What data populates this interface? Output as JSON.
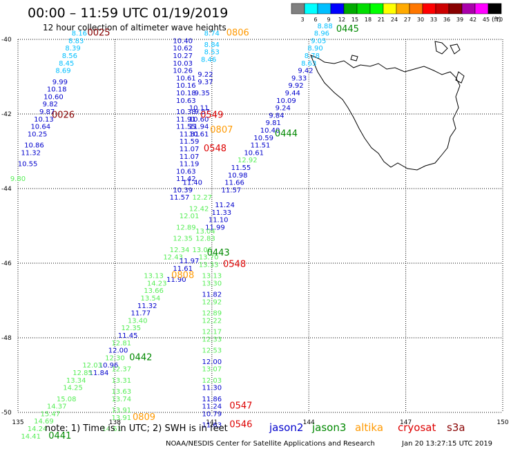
{
  "header": {
    "title": "00:00 – 11:59 UTC 01/19/2019",
    "subtitle": "12 hour collection of altimeter wave heights"
  },
  "colorbar": {
    "unit": "(ft)",
    "ticks": [
      "3",
      "6",
      "9",
      "12",
      "15",
      "18",
      "21",
      "24",
      "27",
      "30",
      "33",
      "36",
      "39",
      "42",
      "45",
      "70"
    ],
    "colors": [
      "#808080",
      "#00ffff",
      "#00bfff",
      "#0000ff",
      "#00aa00",
      "#00dd00",
      "#00ff00",
      "#ffff00",
      "#ffaa00",
      "#ff7700",
      "#ff0000",
      "#cc0000",
      "#880000",
      "#aa00aa",
      "#ff00ff",
      "#000000"
    ]
  },
  "footer": {
    "note": "note: 1) Time is in UTC; 2) SWH is in feet",
    "credit": "NOAA/NESDIS Center for Satellite Applications and Research",
    "timestamp": "Jan 20 13:27:15 UTC 2019"
  },
  "legend": [
    {
      "name": "jason2",
      "color": "#0000cc"
    },
    {
      "name": "jason3",
      "color": "#008800"
    },
    {
      "name": "altika",
      "color": "#ff9900"
    },
    {
      "name": "cryosat",
      "color": "#dd0000"
    },
    {
      "name": "s3a",
      "color": "#880000"
    }
  ],
  "chart_data": {
    "type": "scatter",
    "xlim": [
      135,
      150
    ],
    "ylim": [
      -50,
      -40
    ],
    "xticks": [
      "135",
      "138",
      "141",
      "144",
      "147",
      "150"
    ],
    "yticks": [
      "-40",
      "-42",
      "-44",
      "-46",
      "-48",
      "-50"
    ],
    "grid": true,
    "points": [
      {
        "x": 135.0,
        "y": -43.8,
        "v": "9.80",
        "c": "#55ee55"
      },
      {
        "x": 135.3,
        "y": -43.4,
        "v": "10.55",
        "c": "#0000cc"
      },
      {
        "x": 135.4,
        "y": -43.1,
        "v": "11.32",
        "c": "#0000cc"
      },
      {
        "x": 135.5,
        "y": -42.9,
        "v": "10.86",
        "c": "#0000cc"
      },
      {
        "x": 135.6,
        "y": -42.6,
        "v": "10.25",
        "c": "#0000cc"
      },
      {
        "x": 135.7,
        "y": -42.4,
        "v": "10.64",
        "c": "#0000cc"
      },
      {
        "x": 135.8,
        "y": -42.2,
        "v": "10.13",
        "c": "#0000cc"
      },
      {
        "x": 135.9,
        "y": -42.0,
        "v": "9.87",
        "c": "#0000cc"
      },
      {
        "x": 136.0,
        "y": -41.8,
        "v": "9.82",
        "c": "#0000cc"
      },
      {
        "x": 136.1,
        "y": -41.6,
        "v": "10.60",
        "c": "#0000cc"
      },
      {
        "x": 136.2,
        "y": -41.4,
        "v": "10.18",
        "c": "#0000cc"
      },
      {
        "x": 136.3,
        "y": -41.2,
        "v": "9.99",
        "c": "#0000cc"
      },
      {
        "x": 136.4,
        "y": -40.9,
        "v": "8.69",
        "c": "#00bfff"
      },
      {
        "x": 136.5,
        "y": -40.7,
        "v": "8.45",
        "c": "#00bfff"
      },
      {
        "x": 136.6,
        "y": -40.5,
        "v": "8.56",
        "c": "#00bfff"
      },
      {
        "x": 136.7,
        "y": -40.3,
        "v": "8.39",
        "c": "#00bfff"
      },
      {
        "x": 136.8,
        "y": -40.1,
        "v": "8.83",
        "c": "#00bfff"
      },
      {
        "x": 136.9,
        "y": -39.9,
        "v": "8.16",
        "c": "#00bfff"
      },
      {
        "x": 137.5,
        "y": -39.9,
        "v": "0025",
        "c": "#880000",
        "label": true
      },
      {
        "x": 136.4,
        "y": -42.1,
        "v": "0026",
        "c": "#880000",
        "label": true
      },
      {
        "x": 140.1,
        "y": -40.1,
        "v": "10.40",
        "c": "#0000cc"
      },
      {
        "x": 140.1,
        "y": -40.3,
        "v": "10.62",
        "c": "#0000cc"
      },
      {
        "x": 140.1,
        "y": -40.5,
        "v": "10.27",
        "c": "#0000cc"
      },
      {
        "x": 140.1,
        "y": -40.7,
        "v": "10.03",
        "c": "#0000cc"
      },
      {
        "x": 140.1,
        "y": -40.9,
        "v": "10.26",
        "c": "#0000cc"
      },
      {
        "x": 140.2,
        "y": -41.1,
        "v": "10.61",
        "c": "#0000cc"
      },
      {
        "x": 140.2,
        "y": -41.3,
        "v": "10.16",
        "c": "#0000cc"
      },
      {
        "x": 140.2,
        "y": -41.5,
        "v": "10.18",
        "c": "#0000cc"
      },
      {
        "x": 140.2,
        "y": -41.7,
        "v": "10.63",
        "c": "#0000cc"
      },
      {
        "x": 140.2,
        "y": -42.0,
        "v": "10.38",
        "c": "#0000cc"
      },
      {
        "x": 140.2,
        "y": -42.2,
        "v": "11.91",
        "c": "#0000cc"
      },
      {
        "x": 140.2,
        "y": -42.4,
        "v": "11.55",
        "c": "#0000cc"
      },
      {
        "x": 140.3,
        "y": -42.6,
        "v": "11.81",
        "c": "#0000cc"
      },
      {
        "x": 140.3,
        "y": -42.8,
        "v": "11.59",
        "c": "#0000cc"
      },
      {
        "x": 140.3,
        "y": -43.0,
        "v": "11.07",
        "c": "#0000cc"
      },
      {
        "x": 140.3,
        "y": -43.2,
        "v": "11.07",
        "c": "#0000cc"
      },
      {
        "x": 140.3,
        "y": -43.4,
        "v": "11.19",
        "c": "#0000cc"
      },
      {
        "x": 140.2,
        "y": -43.6,
        "v": "10.63",
        "c": "#0000cc"
      },
      {
        "x": 140.2,
        "y": -43.8,
        "v": "11.42",
        "c": "#0000cc"
      },
      {
        "x": 140.1,
        "y": -44.1,
        "v": "10.39",
        "c": "#0000cc"
      },
      {
        "x": 140.0,
        "y": -44.3,
        "v": "11.57",
        "c": "#0000cc"
      },
      {
        "x": 140.4,
        "y": -43.9,
        "v": "11.40",
        "c": "#0000cc"
      },
      {
        "x": 140.7,
        "y": -42.0,
        "v": "9.87",
        "c": "#0000cc"
      },
      {
        "x": 140.6,
        "y": -42.2,
        "v": "10.60",
        "c": "#0000cc"
      },
      {
        "x": 140.6,
        "y": -42.4,
        "v": "11.94",
        "c": "#0000cc"
      },
      {
        "x": 140.6,
        "y": -42.6,
        "v": "10.61",
        "c": "#0000cc"
      },
      {
        "x": 140.6,
        "y": -41.9,
        "v": "10.11",
        "c": "#0000cc"
      },
      {
        "x": 140.7,
        "y": -41.5,
        "v": "9.35",
        "c": "#0000cc"
      },
      {
        "x": 140.8,
        "y": -41.2,
        "v": "9.37",
        "c": "#0000cc"
      },
      {
        "x": 140.8,
        "y": -41.0,
        "v": "9.22",
        "c": "#0000cc"
      },
      {
        "x": 140.9,
        "y": -40.6,
        "v": "8.46",
        "c": "#00bfff"
      },
      {
        "x": 141.0,
        "y": -40.4,
        "v": "8.53",
        "c": "#00bfff"
      },
      {
        "x": 141.0,
        "y": -40.2,
        "v": "8.84",
        "c": "#00bfff"
      },
      {
        "x": 141.0,
        "y": -39.9,
        "v": "8.74",
        "c": "#00bfff"
      },
      {
        "x": 141.8,
        "y": -39.9,
        "v": "0806",
        "c": "#ff9900",
        "label": true
      },
      {
        "x": 141.0,
        "y": -42.1,
        "v": "0549",
        "c": "#dd0000",
        "label": true
      },
      {
        "x": 141.3,
        "y": -42.5,
        "v": "0807",
        "c": "#ff9900",
        "label": true
      },
      {
        "x": 141.1,
        "y": -43.0,
        "v": "0548",
        "c": "#dd0000",
        "label": true
      },
      {
        "x": 141.3,
        "y": -44.7,
        "v": "11.33",
        "c": "#0000cc"
      },
      {
        "x": 141.2,
        "y": -44.9,
        "v": "11.10",
        "c": "#0000cc"
      },
      {
        "x": 141.1,
        "y": -45.1,
        "v": "11.99",
        "c": "#0000cc"
      },
      {
        "x": 141.4,
        "y": -44.5,
        "v": "11.24",
        "c": "#0000cc"
      },
      {
        "x": 141.6,
        "y": -44.1,
        "v": "11.57",
        "c": "#0000cc"
      },
      {
        "x": 141.7,
        "y": -43.9,
        "v": "11.66",
        "c": "#0000cc"
      },
      {
        "x": 141.8,
        "y": -43.7,
        "v": "10.98",
        "c": "#0000cc"
      },
      {
        "x": 141.9,
        "y": -43.5,
        "v": "11.55",
        "c": "#0000cc"
      },
      {
        "x": 142.1,
        "y": -43.3,
        "v": "12.92",
        "c": "#55ee55"
      },
      {
        "x": 142.3,
        "y": -43.1,
        "v": "10.61",
        "c": "#0000cc"
      },
      {
        "x": 142.5,
        "y": -42.9,
        "v": "11.51",
        "c": "#0000cc"
      },
      {
        "x": 142.6,
        "y": -42.7,
        "v": "10.59",
        "c": "#0000cc"
      },
      {
        "x": 142.8,
        "y": -42.5,
        "v": "10.40",
        "c": "#0000cc"
      },
      {
        "x": 142.9,
        "y": -42.3,
        "v": "9.81",
        "c": "#0000cc"
      },
      {
        "x": 143.0,
        "y": -42.1,
        "v": "9.84",
        "c": "#0000cc"
      },
      {
        "x": 143.2,
        "y": -41.9,
        "v": "9.24",
        "c": "#0000cc"
      },
      {
        "x": 143.3,
        "y": -41.7,
        "v": "10.09",
        "c": "#0000cc"
      },
      {
        "x": 143.5,
        "y": -41.5,
        "v": "9.44",
        "c": "#0000cc"
      },
      {
        "x": 143.6,
        "y": -41.3,
        "v": "9.92",
        "c": "#0000cc"
      },
      {
        "x": 143.7,
        "y": -41.1,
        "v": "9.33",
        "c": "#0000cc"
      },
      {
        "x": 143.9,
        "y": -40.9,
        "v": "9.42",
        "c": "#0000cc"
      },
      {
        "x": 144.0,
        "y": -40.7,
        "v": "8.63",
        "c": "#00bfff"
      },
      {
        "x": 144.1,
        "y": -40.5,
        "v": "8.78",
        "c": "#00bfff"
      },
      {
        "x": 144.2,
        "y": -40.3,
        "v": "8.90",
        "c": "#00bfff"
      },
      {
        "x": 144.3,
        "y": -40.1,
        "v": "9.05",
        "c": "#00bfff"
      },
      {
        "x": 144.4,
        "y": -39.9,
        "v": "8.96",
        "c": "#00bfff"
      },
      {
        "x": 144.5,
        "y": -39.7,
        "v": "8.88",
        "c": "#00bfff"
      },
      {
        "x": 145.2,
        "y": -39.8,
        "v": "0445",
        "c": "#008800",
        "label": true
      },
      {
        "x": 143.3,
        "y": -42.6,
        "v": "0444",
        "c": "#008800",
        "label": true
      },
      {
        "x": 140.7,
        "y": -44.3,
        "v": "12.27",
        "c": "#55ee55"
      },
      {
        "x": 140.6,
        "y": -44.6,
        "v": "12.42",
        "c": "#55ee55"
      },
      {
        "x": 140.3,
        "y": -44.8,
        "v": "12.01",
        "c": "#55ee55"
      },
      {
        "x": 140.2,
        "y": -45.1,
        "v": "12.89",
        "c": "#55ee55"
      },
      {
        "x": 140.1,
        "y": -45.4,
        "v": "12.35",
        "c": "#55ee55"
      },
      {
        "x": 140.0,
        "y": -45.7,
        "v": "12.34",
        "c": "#55ee55"
      },
      {
        "x": 139.8,
        "y": -45.9,
        "v": "12.43",
        "c": "#55ee55"
      },
      {
        "x": 140.8,
        "y": -45.2,
        "v": "13.04",
        "c": "#55ee55"
      },
      {
        "x": 140.8,
        "y": -45.4,
        "v": "12.83",
        "c": "#55ee55"
      },
      {
        "x": 140.7,
        "y": -45.7,
        "v": "13.06",
        "c": "#55ee55"
      },
      {
        "x": 140.9,
        "y": -45.9,
        "v": "13.70",
        "c": "#55ee55"
      },
      {
        "x": 140.9,
        "y": -46.1,
        "v": "13.33",
        "c": "#55ee55"
      },
      {
        "x": 141.0,
        "y": -46.4,
        "v": "13.13",
        "c": "#55ee55"
      },
      {
        "x": 141.0,
        "y": -46.6,
        "v": "13.30",
        "c": "#55ee55"
      },
      {
        "x": 141.0,
        "y": -46.9,
        "v": "11.82",
        "c": "#0000cc"
      },
      {
        "x": 141.0,
        "y": -47.1,
        "v": "12.92",
        "c": "#55ee55"
      },
      {
        "x": 141.0,
        "y": -47.4,
        "v": "12.89",
        "c": "#55ee55"
      },
      {
        "x": 141.0,
        "y": -47.6,
        "v": "12.22",
        "c": "#55ee55"
      },
      {
        "x": 141.0,
        "y": -47.9,
        "v": "12.17",
        "c": "#55ee55"
      },
      {
        "x": 141.0,
        "y": -48.1,
        "v": "12.33",
        "c": "#55ee55"
      },
      {
        "x": 141.0,
        "y": -48.4,
        "v": "12.53",
        "c": "#55ee55"
      },
      {
        "x": 141.0,
        "y": -48.7,
        "v": "12.00",
        "c": "#0000cc"
      },
      {
        "x": 141.0,
        "y": -48.9,
        "v": "13.07",
        "c": "#55ee55"
      },
      {
        "x": 141.0,
        "y": -49.2,
        "v": "12.03",
        "c": "#55ee55"
      },
      {
        "x": 141.0,
        "y": -49.4,
        "v": "11.30",
        "c": "#0000cc"
      },
      {
        "x": 141.0,
        "y": -49.7,
        "v": "11.86",
        "c": "#0000cc"
      },
      {
        "x": 141.0,
        "y": -49.9,
        "v": "11.24",
        "c": "#0000cc"
      },
      {
        "x": 141.0,
        "y": -50.1,
        "v": "10.79",
        "c": "#0000cc"
      },
      {
        "x": 141.0,
        "y": -50.4,
        "v": "11.63",
        "c": "#0000cc"
      },
      {
        "x": 141.9,
        "y": -49.9,
        "v": "0547",
        "c": "#dd0000",
        "label": true
      },
      {
        "x": 141.9,
        "y": -50.4,
        "v": "0546",
        "c": "#dd0000",
        "label": true
      },
      {
        "x": 141.2,
        "y": -45.8,
        "v": "0443",
        "c": "#008800",
        "label": true
      },
      {
        "x": 141.7,
        "y": -46.1,
        "v": "0548",
        "c": "#dd0000",
        "label": true
      },
      {
        "x": 140.3,
        "y": -46.0,
        "v": "11.97",
        "c": "#0000cc"
      },
      {
        "x": 140.1,
        "y": -46.2,
        "v": "11.61",
        "c": "#0000cc"
      },
      {
        "x": 139.9,
        "y": -46.5,
        "v": "11.90",
        "c": "#0000cc"
      },
      {
        "x": 140.1,
        "y": -46.4,
        "v": "0808",
        "c": "#ff9900",
        "label": true
      },
      {
        "x": 139.2,
        "y": -46.4,
        "v": "13.13",
        "c": "#55ee55"
      },
      {
        "x": 139.3,
        "y": -46.6,
        "v": "14.23",
        "c": "#55ee55"
      },
      {
        "x": 139.2,
        "y": -46.8,
        "v": "13.66",
        "c": "#55ee55"
      },
      {
        "x": 139.1,
        "y": -47.0,
        "v": "13.54",
        "c": "#55ee55"
      },
      {
        "x": 139.0,
        "y": -47.2,
        "v": "11.32",
        "c": "#0000cc"
      },
      {
        "x": 138.8,
        "y": -47.4,
        "v": "11.77",
        "c": "#0000cc"
      },
      {
        "x": 138.7,
        "y": -47.6,
        "v": "13.40",
        "c": "#55ee55"
      },
      {
        "x": 138.5,
        "y": -47.8,
        "v": "12.35",
        "c": "#55ee55"
      },
      {
        "x": 138.4,
        "y": -48.0,
        "v": "11.45",
        "c": "#0000cc"
      },
      {
        "x": 138.2,
        "y": -48.2,
        "v": "12.81",
        "c": "#55ee55"
      },
      {
        "x": 138.1,
        "y": -48.4,
        "v": "12.00",
        "c": "#0000cc"
      },
      {
        "x": 138.0,
        "y": -48.6,
        "v": "12.30",
        "c": "#55ee55"
      },
      {
        "x": 137.8,
        "y": -48.8,
        "v": "10.96",
        "c": "#0000cc"
      },
      {
        "x": 137.5,
        "y": -49.0,
        "v": "11.84",
        "c": "#0000cc"
      },
      {
        "x": 138.8,
        "y": -48.6,
        "v": "0442",
        "c": "#008800",
        "label": true
      },
      {
        "x": 138.2,
        "y": -48.9,
        "v": "12.37",
        "c": "#55ee55"
      },
      {
        "x": 138.2,
        "y": -49.2,
        "v": "13.31",
        "c": "#55ee55"
      },
      {
        "x": 138.2,
        "y": -49.5,
        "v": "13.63",
        "c": "#55ee55"
      },
      {
        "x": 138.2,
        "y": -49.7,
        "v": "13.74",
        "c": "#55ee55"
      },
      {
        "x": 138.2,
        "y": -50.0,
        "v": "13.91",
        "c": "#55ee55"
      },
      {
        "x": 138.2,
        "y": -50.2,
        "v": "13.91",
        "c": "#55ee55"
      },
      {
        "x": 137.9,
        "y": -50.5,
        "v": "14.61",
        "c": "#55ee55"
      },
      {
        "x": 138.9,
        "y": -50.2,
        "v": "0809",
        "c": "#ff9900",
        "label": true
      },
      {
        "x": 137.3,
        "y": -48.8,
        "v": "12.03",
        "c": "#55ee55"
      },
      {
        "x": 137.0,
        "y": -49.0,
        "v": "12.85",
        "c": "#55ee55"
      },
      {
        "x": 136.8,
        "y": -49.2,
        "v": "13.34",
        "c": "#55ee55"
      },
      {
        "x": 136.7,
        "y": -49.4,
        "v": "14.25",
        "c": "#55ee55"
      },
      {
        "x": 136.5,
        "y": -49.7,
        "v": "15.08",
        "c": "#55ee55"
      },
      {
        "x": 136.2,
        "y": -49.9,
        "v": "14.37",
        "c": "#55ee55"
      },
      {
        "x": 136.0,
        "y": -50.1,
        "v": "15.47",
        "c": "#55ee55"
      },
      {
        "x": 135.8,
        "y": -50.3,
        "v": "14.69",
        "c": "#55ee55"
      },
      {
        "x": 135.6,
        "y": -50.5,
        "v": "14.24",
        "c": "#55ee55"
      },
      {
        "x": 135.4,
        "y": -50.7,
        "v": "14.41",
        "c": "#55ee55"
      },
      {
        "x": 136.3,
        "y": -50.7,
        "v": "0441",
        "c": "#008800",
        "label": true
      }
    ]
  }
}
